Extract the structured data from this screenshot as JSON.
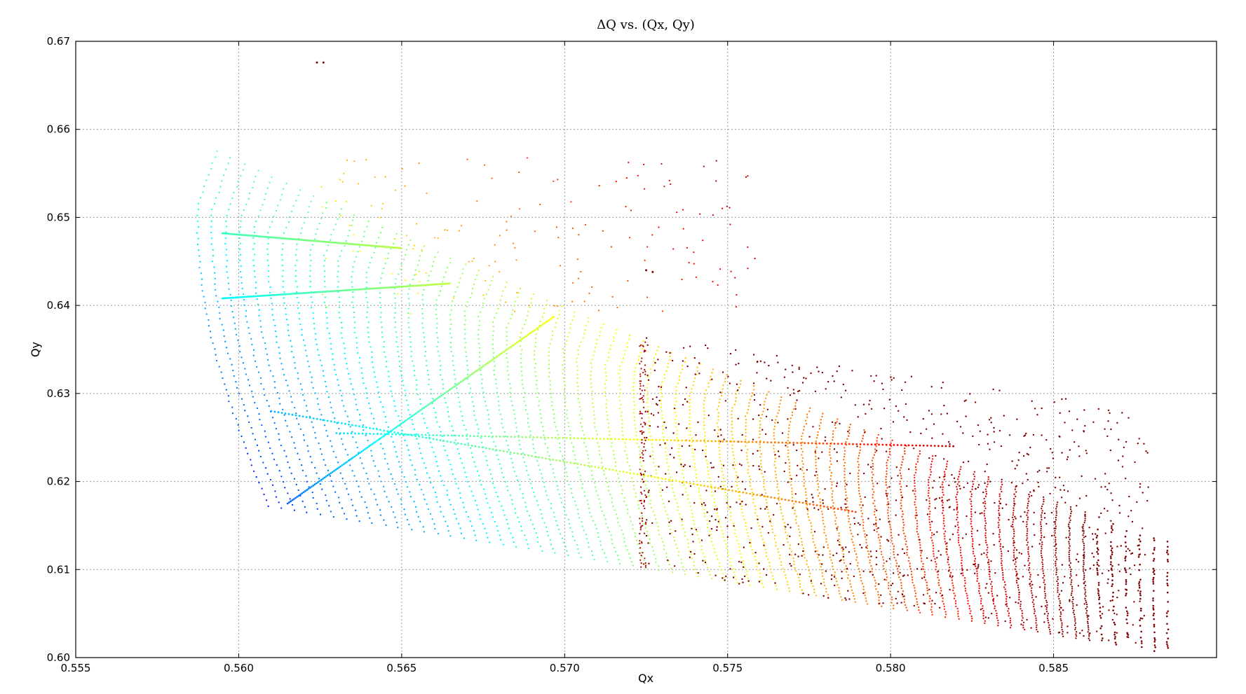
{
  "chart_data": {
    "type": "scatter",
    "title": "ΔQ vs. (Qx, Qy)",
    "xlabel": "Qx",
    "ylabel": "Qy",
    "xlim": [
      0.555,
      0.59
    ],
    "ylim": [
      0.6,
      0.67
    ],
    "x_ticks": [
      "0.555",
      "0.560",
      "0.565",
      "0.570",
      "0.575",
      "0.580",
      "0.585"
    ],
    "x_tick_values": [
      0.555,
      0.56,
      0.565,
      0.57,
      0.575,
      0.58,
      0.585
    ],
    "y_ticks": [
      "0.60",
      "0.61",
      "0.62",
      "0.63",
      "0.64",
      "0.65",
      "0.66",
      "0.67"
    ],
    "y_tick_values": [
      0.6,
      0.61,
      0.62,
      0.63,
      0.64,
      0.65,
      0.66,
      0.67
    ],
    "grid": true,
    "colormap": "jet",
    "colormap_stops": [
      "#00007f",
      "#0000ff",
      "#007fff",
      "#00ffff",
      "#7fff7f",
      "#ffff00",
      "#ff7f00",
      "#ff0000",
      "#7f0000"
    ],
    "footprint": {
      "corner": [
        0.5609,
        0.6172
      ],
      "bottom_edge_end": [
        0.5885,
        0.6005
      ],
      "left_edge_top": [
        0.5592,
        0.6575
      ],
      "left_edge_min_x": 0.5587
    },
    "features": {
      "rays": [
        {
          "from": [
            0.5615,
            0.6175
          ],
          "to": [
            0.5697,
            0.6388
          ]
        },
        {
          "from": [
            0.5595,
            0.6408
          ],
          "to": [
            0.5665,
            0.6425
          ]
        },
        {
          "from": [
            0.5595,
            0.6482
          ],
          "to": [
            0.565,
            0.6465
          ]
        },
        {
          "from": [
            0.561,
            0.628
          ],
          "to": [
            0.579,
            0.6165
          ]
        },
        {
          "from": [
            0.563,
            0.6255
          ],
          "to": [
            0.582,
            0.624
          ]
        }
      ],
      "vertical_band_x": 0.5724,
      "isolated_points": [
        [
          0.5624,
          0.6676
        ],
        [
          0.5626,
          0.6676
        ],
        [
          0.5725,
          0.644
        ],
        [
          0.5727,
          0.6438
        ]
      ]
    }
  }
}
